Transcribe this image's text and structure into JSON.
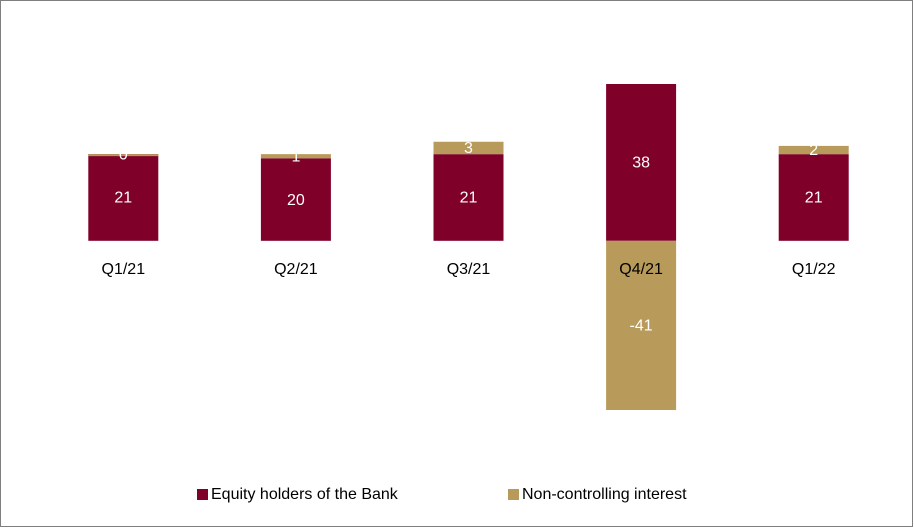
{
  "chart_data": {
    "type": "stacked_bar",
    "categories": [
      "Q1/21",
      "Q2/21",
      "Q3/21",
      "Q4/21",
      "Q1/22"
    ],
    "series": [
      {
        "name": "Equity holders of the Bank",
        "color": "#7f0029",
        "values": [
          21,
          20,
          21,
          38,
          21
        ]
      },
      {
        "name": "Non-controlling interest",
        "color": "#b89a5a",
        "values": [
          0,
          1,
          3,
          -41,
          2
        ]
      }
    ],
    "legend": "bottom"
  }
}
